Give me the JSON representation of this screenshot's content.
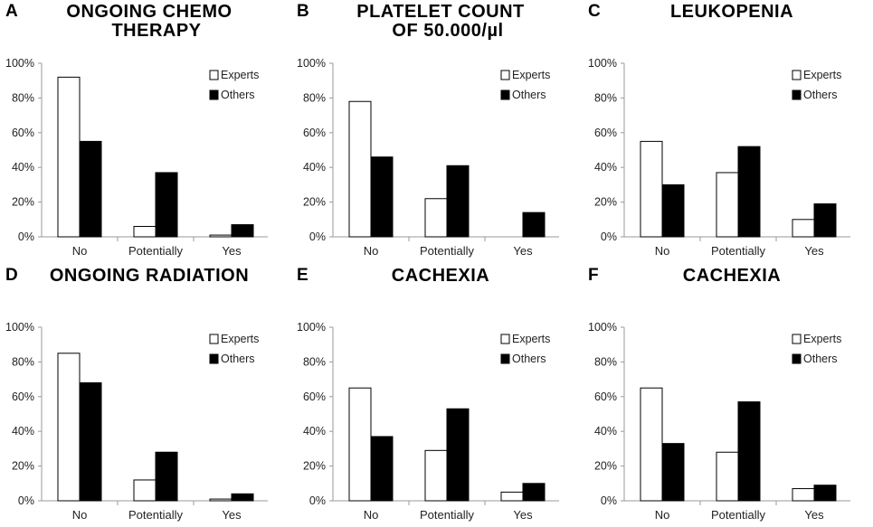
{
  "colors": {
    "experts": "#ffffff",
    "others": "#000000",
    "axis": "#9a9a9a",
    "stroke": "#000000"
  },
  "chart_data": [
    {
      "type": "bar",
      "panel_label": "A",
      "title_lines": [
        "ONGOING CHEMO",
        "THERAPY"
      ],
      "categories": [
        "No",
        "Potentially",
        "Yes"
      ],
      "y_ticks": [
        "0%",
        "20%",
        "40%",
        "60%",
        "80%",
        "100%"
      ],
      "ylim": [
        0,
        100
      ],
      "legend": [
        "Experts",
        "Others"
      ],
      "series": [
        {
          "name": "Experts",
          "values": [
            92,
            6,
            1
          ]
        },
        {
          "name": "Others",
          "values": [
            55,
            37,
            7
          ]
        }
      ]
    },
    {
      "type": "bar",
      "panel_label": "B",
      "title_lines": [
        "PLATELET COUNT",
        "OF 50.000/µl"
      ],
      "categories": [
        "No",
        "Potentially",
        "Yes"
      ],
      "y_ticks": [
        "0%",
        "20%",
        "40%",
        "60%",
        "80%",
        "100%"
      ],
      "ylim": [
        0,
        100
      ],
      "legend": [
        "Experts",
        "Others"
      ],
      "series": [
        {
          "name": "Experts",
          "values": [
            78,
            22,
            0
          ]
        },
        {
          "name": "Others",
          "values": [
            46,
            41,
            14
          ]
        }
      ]
    },
    {
      "type": "bar",
      "panel_label": "C",
      "title_lines": [
        "LEUKOPENIA"
      ],
      "categories": [
        "No",
        "Potentially",
        "Yes"
      ],
      "y_ticks": [
        "0%",
        "20%",
        "40%",
        "60%",
        "80%",
        "100%"
      ],
      "ylim": [
        0,
        100
      ],
      "legend": [
        "Experts",
        "Others"
      ],
      "series": [
        {
          "name": "Experts",
          "values": [
            55,
            37,
            10
          ]
        },
        {
          "name": "Others",
          "values": [
            30,
            52,
            19
          ]
        }
      ]
    },
    {
      "type": "bar",
      "panel_label": "D",
      "title_lines": [
        "ONGOING RADIATION"
      ],
      "categories": [
        "No",
        "Potentially",
        "Yes"
      ],
      "y_ticks": [
        "0%",
        "20%",
        "40%",
        "60%",
        "80%",
        "100%"
      ],
      "ylim": [
        0,
        100
      ],
      "legend": [
        "Experts",
        "Others"
      ],
      "series": [
        {
          "name": "Experts",
          "values": [
            85,
            12,
            1
          ]
        },
        {
          "name": "Others",
          "values": [
            68,
            28,
            4
          ]
        }
      ]
    },
    {
      "type": "bar",
      "panel_label": "E",
      "title_lines": [
        "CACHEXIA"
      ],
      "categories": [
        "No",
        "Potentially",
        "Yes"
      ],
      "y_ticks": [
        "0%",
        "20%",
        "40%",
        "60%",
        "80%",
        "100%"
      ],
      "ylim": [
        0,
        100
      ],
      "legend": [
        "Experts",
        "Others"
      ],
      "series": [
        {
          "name": "Experts",
          "values": [
            65,
            29,
            5
          ]
        },
        {
          "name": "Others",
          "values": [
            37,
            53,
            10
          ]
        }
      ]
    },
    {
      "type": "bar",
      "panel_label": "F",
      "title_lines": [
        "CACHEXIA"
      ],
      "categories": [
        "No",
        "Potentially",
        "Yes"
      ],
      "y_ticks": [
        "0%",
        "20%",
        "40%",
        "60%",
        "80%",
        "100%"
      ],
      "ylim": [
        0,
        100
      ],
      "legend": [
        "Experts",
        "Others"
      ],
      "series": [
        {
          "name": "Experts",
          "values": [
            65,
            28,
            7
          ]
        },
        {
          "name": "Others",
          "values": [
            33,
            57,
            9
          ]
        }
      ]
    }
  ]
}
